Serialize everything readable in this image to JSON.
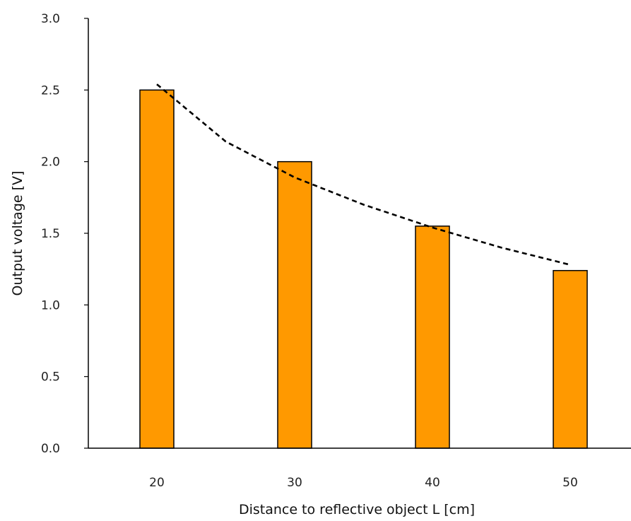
{
  "chart_data": {
    "type": "bar",
    "categories": [
      "20",
      "30",
      "40",
      "50"
    ],
    "series": [
      {
        "values": [
          2.5,
          2.0,
          1.55,
          1.24
        ]
      }
    ],
    "trendline": {
      "style": "dashed",
      "x": [
        20,
        25,
        30,
        35,
        40,
        45,
        50
      ],
      "y": [
        2.54,
        2.14,
        1.89,
        1.7,
        1.54,
        1.4,
        1.28
      ]
    },
    "xlabel": "Distance to reflective object L [cm]",
    "ylabel": "Output voltage [V]",
    "ylim": [
      0,
      3.0
    ],
    "yticks": [
      "0.0",
      "0.5",
      "1.0",
      "1.5",
      "2.0",
      "2.5",
      "3.0"
    ],
    "grid": false,
    "colors": {
      "bar": "#FF9900",
      "outline": "#000000",
      "trend": "#000000"
    }
  }
}
